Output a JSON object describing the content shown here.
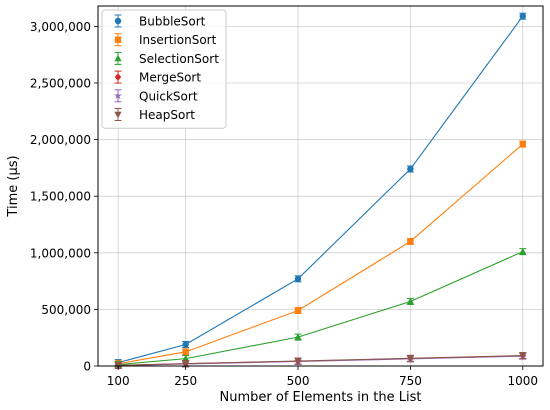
{
  "chart_data": {
    "type": "line",
    "title": "",
    "xlabel": "Number of Elements in the List",
    "ylabel": "Time (µs)",
    "x": [
      100,
      250,
      500,
      750,
      1000
    ],
    "x_ticks": [
      100,
      250,
      500,
      750,
      1000
    ],
    "x_tick_labels": [
      "100",
      "250",
      "500",
      "750",
      "1000"
    ],
    "xlim": [
      55,
      1045
    ],
    "ylim": [
      0,
      3180000
    ],
    "y_ticks": [
      0,
      500000,
      1000000,
      1500000,
      2000000,
      2500000,
      3000000
    ],
    "y_tick_labels": [
      "0",
      "500,000",
      "1,000,000",
      "1,500,000",
      "2,000,000",
      "2,500,000",
      "3,000,000"
    ],
    "grid": true,
    "legend_position": "top-left",
    "error_bars": true,
    "series": [
      {
        "name": "BubbleSort",
        "color": "#1f77b4",
        "marker": "circle",
        "values": [
          30000,
          190000,
          770000,
          1740000,
          3090000
        ]
      },
      {
        "name": "InsertionSort",
        "color": "#ff7f0e",
        "marker": "square",
        "values": [
          20000,
          125000,
          490000,
          1100000,
          1960000
        ]
      },
      {
        "name": "SelectionSort",
        "color": "#2ca02c",
        "marker": "triangle-up",
        "values": [
          12000,
          65000,
          255000,
          570000,
          1010000
        ]
      },
      {
        "name": "MergeSort",
        "color": "#d62728",
        "marker": "diamond",
        "values": [
          5000,
          20000,
          42000,
          66000,
          90000
        ]
      },
      {
        "name": "QuickSort",
        "color": "#9467bd",
        "marker": "star",
        "values": [
          4500,
          18000,
          40000,
          63000,
          87000
        ]
      },
      {
        "name": "HeapSort",
        "color": "#8c564b",
        "marker": "triangle-down",
        "values": [
          5500,
          21000,
          44000,
          68000,
          92000
        ]
      }
    ]
  }
}
